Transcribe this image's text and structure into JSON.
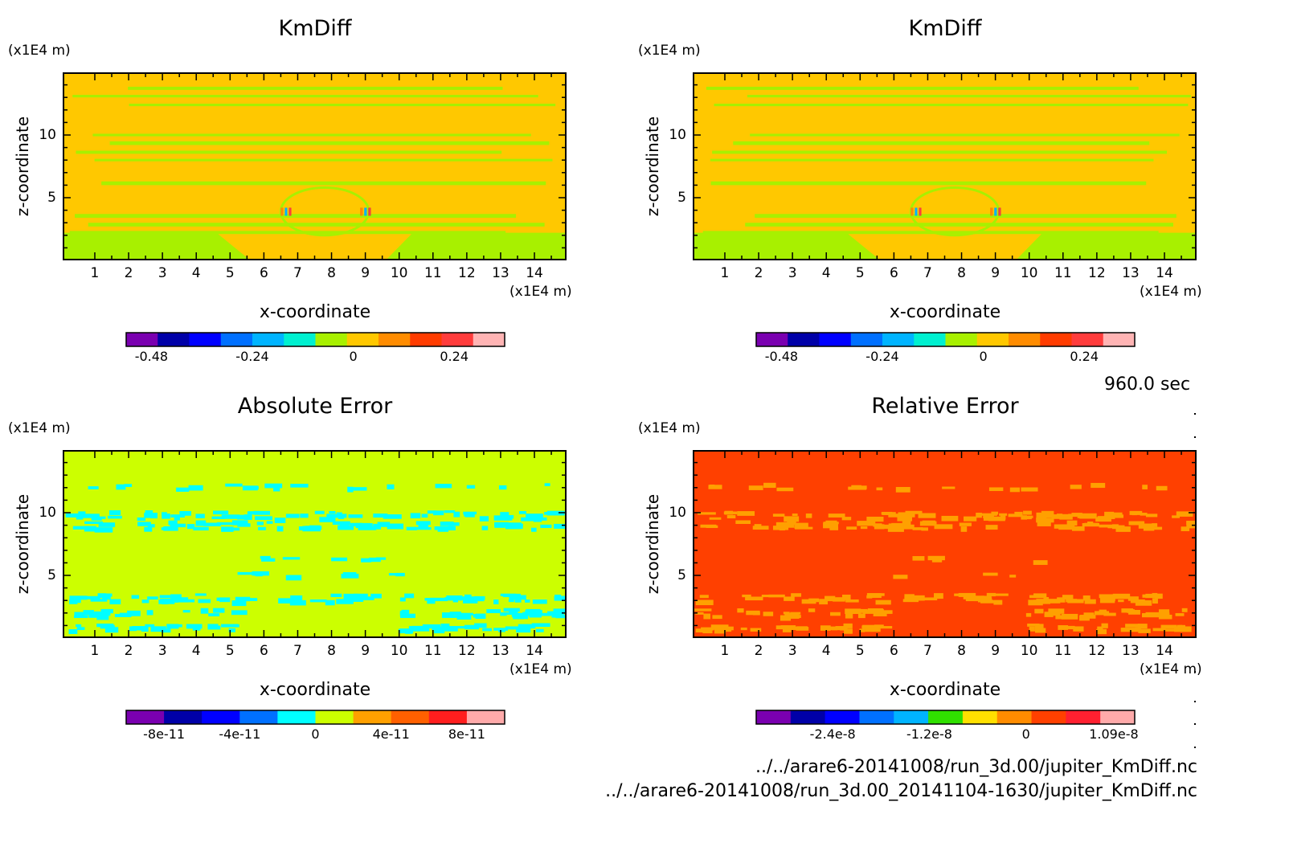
{
  "times": {
    "label": "960.0 sec"
  },
  "files": [
    "../../arare6-20141008/run_3d.00/jupiter_KmDiff.nc",
    "../../arare6-20141008/run_3d.00_20141104-1630/jupiter_KmDiff.nc"
  ],
  "chart_data": [
    {
      "type": "heatmap",
      "title": "KmDiff",
      "xlabel": "x-coordinate",
      "ylabel": "z-coordinate",
      "x_unit": "(x1E4 m)",
      "y_unit": "(x1E4 m)",
      "xlim": [
        0.05,
        14.95
      ],
      "ylim": [
        0,
        15
      ],
      "xticks": [
        "1",
        "2",
        "3",
        "4",
        "5",
        "6",
        "7",
        "8",
        "9",
        "10",
        "11",
        "12",
        "13",
        "14"
      ],
      "yticks": [
        "5",
        "10"
      ],
      "colorbar": {
        "colors": [
          "#7a00b0",
          "#0000a8",
          "#0000ff",
          "#0070ff",
          "#00b4ff",
          "#00f0d0",
          "#a8f000",
          "#ffc800",
          "#ff8c00",
          "#ff3c00",
          "#ff3c3c",
          "#ffb4b4"
        ],
        "tick_labels": [
          "-0.48",
          "-0.24",
          "0",
          "0.24"
        ],
        "tick_values": [
          -0.48,
          -0.24,
          0,
          0.24
        ],
        "range": [
          -0.54,
          0.36
        ]
      },
      "background_color": "#ffc800",
      "band_color": "#a8f000"
    },
    {
      "type": "heatmap",
      "title": "KmDiff",
      "xlabel": "x-coordinate",
      "ylabel": "z-coordinate",
      "x_unit": "(x1E4 m)",
      "y_unit": "(x1E4 m)",
      "xlim": [
        0.05,
        14.95
      ],
      "ylim": [
        0,
        15
      ],
      "xticks": [
        "1",
        "2",
        "3",
        "4",
        "5",
        "6",
        "7",
        "8",
        "9",
        "10",
        "11",
        "12",
        "13",
        "14"
      ],
      "yticks": [
        "5",
        "10"
      ],
      "colorbar": {
        "colors": [
          "#7a00b0",
          "#0000a8",
          "#0000ff",
          "#0070ff",
          "#00b4ff",
          "#00f0d0",
          "#a8f000",
          "#ffc800",
          "#ff8c00",
          "#ff3c00",
          "#ff3c3c",
          "#ffb4b4"
        ],
        "tick_labels": [
          "-0.48",
          "-0.24",
          "0",
          "0.24"
        ],
        "tick_values": [
          -0.48,
          -0.24,
          0,
          0.24
        ],
        "range": [
          -0.54,
          0.36
        ]
      },
      "background_color": "#ffc800",
      "band_color": "#a8f000"
    },
    {
      "type": "heatmap",
      "title": "Absolute Error",
      "xlabel": "x-coordinate",
      "ylabel": "z-coordinate",
      "x_unit": "(x1E4 m)",
      "y_unit": "(x1E4 m)",
      "xlim": [
        0.05,
        14.95
      ],
      "ylim": [
        0,
        15
      ],
      "xticks": [
        "1",
        "2",
        "3",
        "4",
        "5",
        "6",
        "7",
        "8",
        "9",
        "10",
        "11",
        "12",
        "13",
        "14"
      ],
      "yticks": [
        "5",
        "10"
      ],
      "colorbar": {
        "colors": [
          "#7a00b0",
          "#0000a8",
          "#0000ff",
          "#0070ff",
          "#00ffff",
          "#ccff00",
          "#ffa000",
          "#ff6000",
          "#ff1e1e",
          "#ffaaaa"
        ],
        "tick_labels": [
          "-8e-11",
          "-4e-11",
          "0",
          "4e-11",
          "8e-11"
        ],
        "tick_values": [
          -8e-11,
          -4e-11,
          0,
          4e-11,
          8e-11
        ],
        "range": [
          -1e-10,
          1e-10
        ]
      },
      "background_color": "#ccff00",
      "band_color": "#00ffff"
    },
    {
      "type": "heatmap",
      "title": "Relative Error",
      "xlabel": "x-coordinate",
      "ylabel": "z-coordinate",
      "x_unit": "(x1E4 m)",
      "y_unit": "(x1E4 m)",
      "xlim": [
        0.05,
        14.95
      ],
      "ylim": [
        0,
        15
      ],
      "xticks": [
        "1",
        "2",
        "3",
        "4",
        "5",
        "6",
        "7",
        "8",
        "9",
        "10",
        "11",
        "12",
        "13",
        "14"
      ],
      "yticks": [
        "5",
        "10"
      ],
      "colorbar": {
        "colors": [
          "#7a00b0",
          "#0000a8",
          "#0000ff",
          "#0070ff",
          "#00b4ff",
          "#30e000",
          "#ffe000",
          "#ff8c00",
          "#ff4000",
          "#ff2030",
          "#ffaaaa"
        ],
        "tick_labels": [
          "-2.4e-8",
          "-1.2e-8",
          "0",
          "1.09e-8"
        ],
        "tick_values": [
          -2.4e-08,
          -1.2e-08,
          0,
          1.09e-08
        ],
        "range": [
          -3.35e-08,
          1.35e-08
        ]
      },
      "background_color": "#ff4000",
      "band_color": "#ffa000"
    }
  ]
}
